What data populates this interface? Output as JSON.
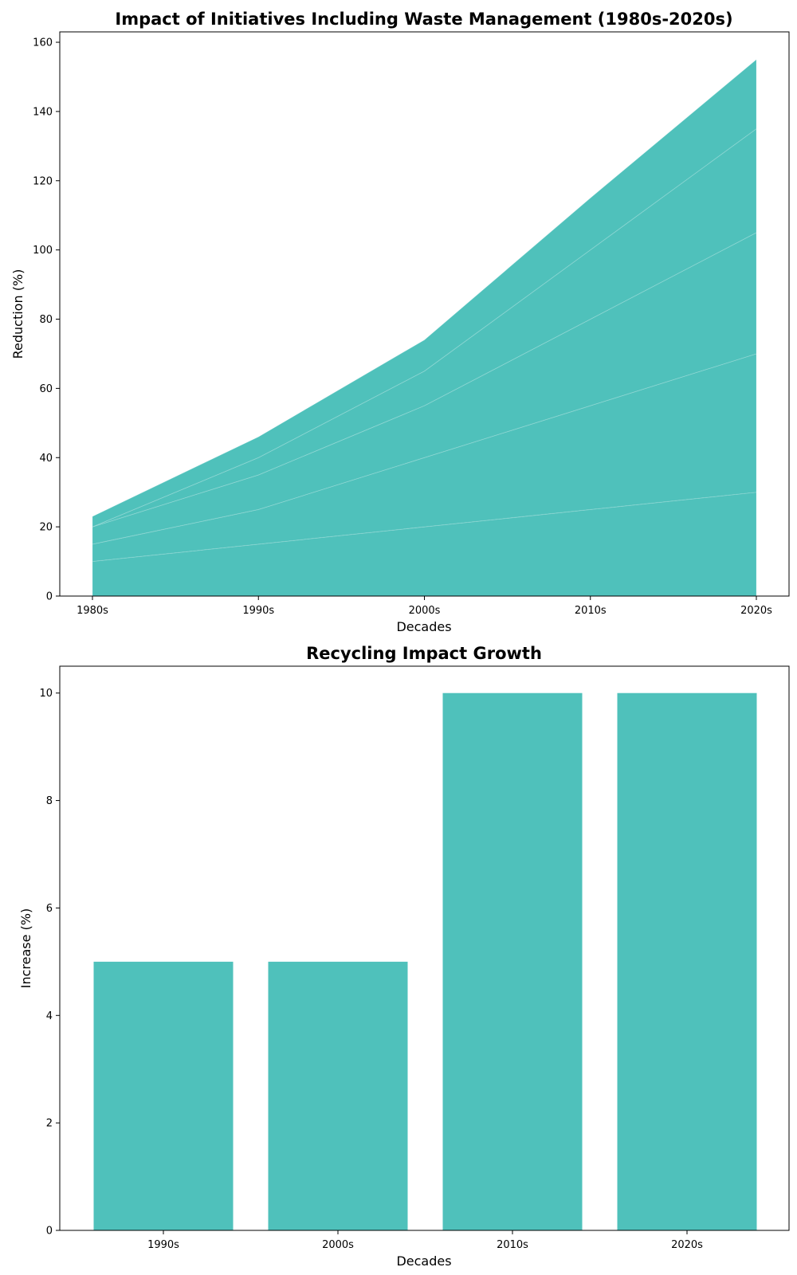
{
  "chart_data": [
    {
      "type": "area",
      "stacked": true,
      "title": "Impact of Initiatives Including Waste Management (1980s-2020s)",
      "xlabel": "Decades",
      "ylabel": "Reduction (%)",
      "categories": [
        "1980s",
        "1990s",
        "2000s",
        "2010s",
        "2020s"
      ],
      "series": [
        {
          "values": [
            10,
            15,
            20,
            25,
            30
          ]
        },
        {
          "values": [
            5,
            10,
            20,
            30,
            40
          ]
        },
        {
          "values": [
            5,
            10,
            15,
            25,
            35
          ]
        },
        {
          "values": [
            0,
            5,
            10,
            20,
            30
          ]
        },
        {
          "values": [
            3,
            6,
            9,
            15,
            20
          ]
        }
      ],
      "ylim": [
        0,
        163
      ],
      "yticks": [
        0,
        20,
        40,
        60,
        80,
        100,
        120,
        140,
        160
      ],
      "color": "#4fc1bb",
      "grid": false
    },
    {
      "type": "bar",
      "title": "Recycling Impact Growth",
      "xlabel": "Decades",
      "ylabel": "Increase (%)",
      "categories": [
        "1990s",
        "2000s",
        "2010s",
        "2020s"
      ],
      "values": [
        5,
        5,
        10,
        10
      ],
      "ylim": [
        0,
        10.5
      ],
      "yticks": [
        0,
        2,
        4,
        6,
        8,
        10
      ],
      "color": "#4fc1bb",
      "grid": false
    }
  ]
}
